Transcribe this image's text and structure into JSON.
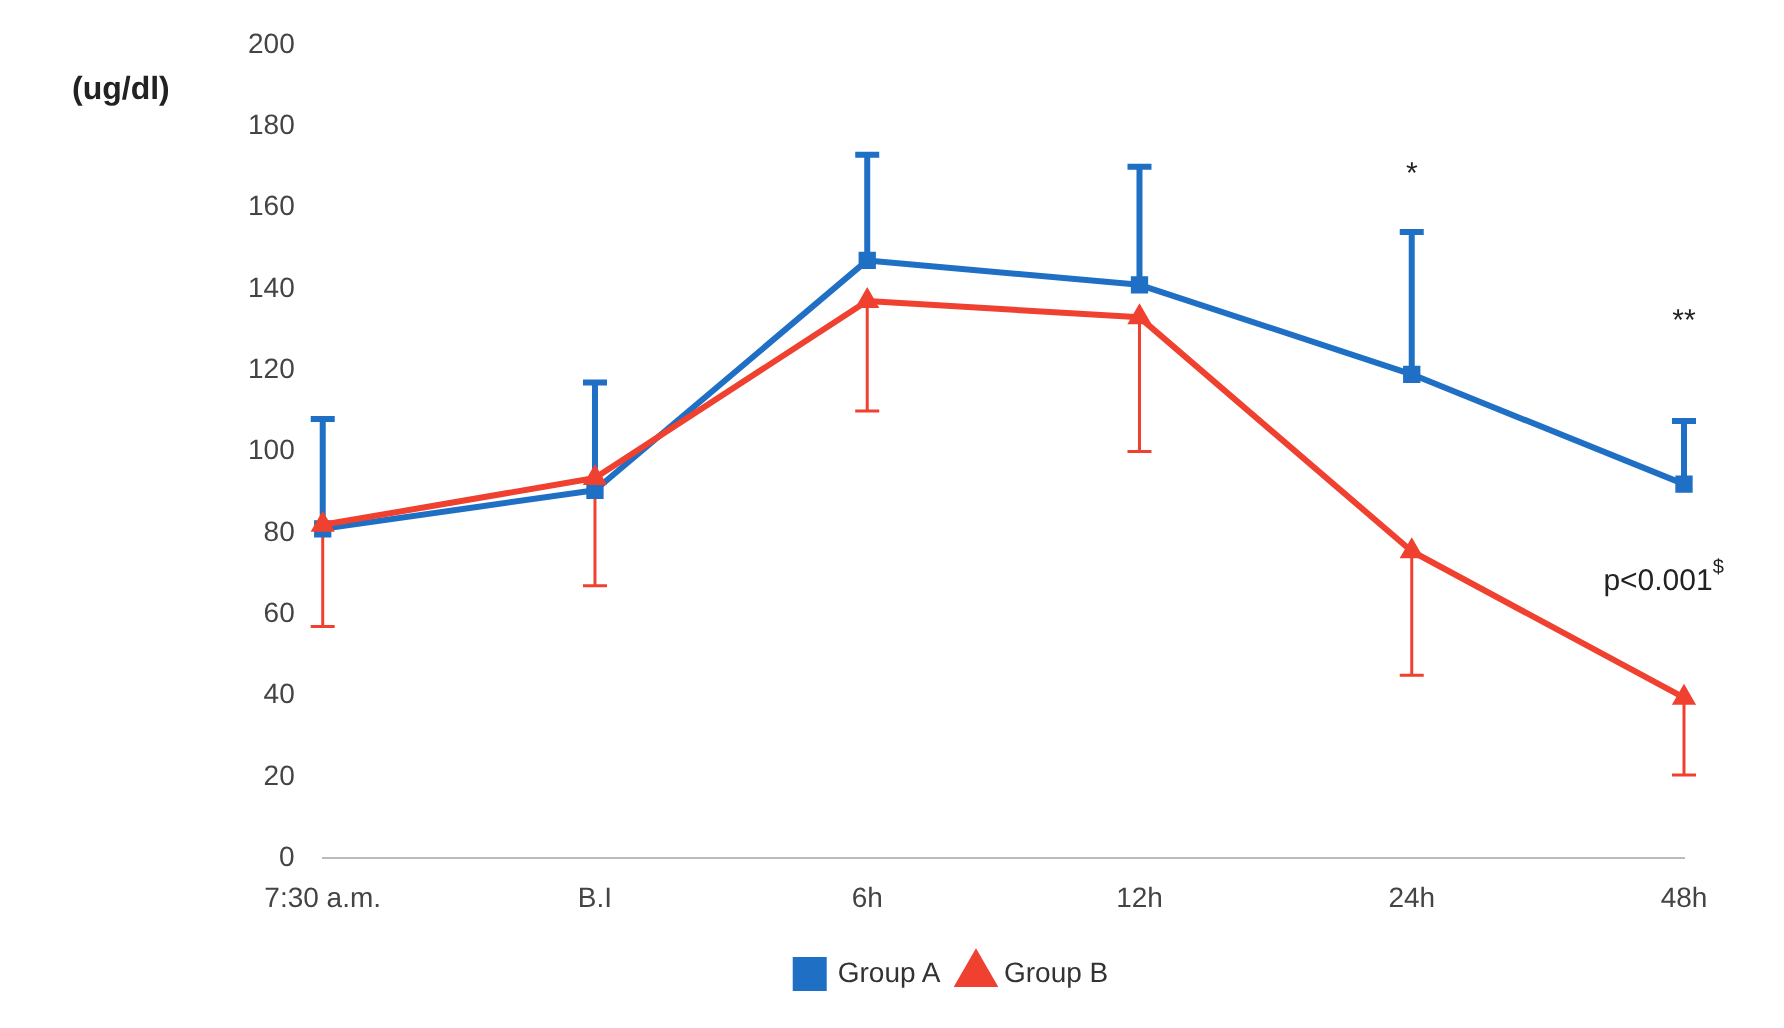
{
  "chart_data": {
    "type": "line",
    "ylabel": "(ug/dl)",
    "categories": [
      "7:30 a.m.",
      "B.I",
      "6h",
      "12h",
      "24h",
      "48h"
    ],
    "series": [
      {
        "name": "Group A",
        "color": "#1f6fc5",
        "marker": "square",
        "values": [
          81,
          90.5,
          147,
          141,
          119,
          92
        ],
        "errors": [
          [
            81,
            108
          ],
          [
            90.5,
            117
          ],
          [
            147,
            173
          ],
          [
            141,
            170
          ],
          [
            119,
            154
          ],
          [
            92,
            107.5
          ]
        ]
      },
      {
        "name": "Group B",
        "color": "#f0402f",
        "marker": "triangle",
        "values": [
          82,
          93.5,
          137,
          133,
          75.5,
          39.5
        ],
        "errors": [
          [
            57,
            82
          ],
          [
            67,
            93.5
          ],
          [
            110,
            137
          ],
          [
            100,
            133
          ],
          [
            45,
            75.5
          ],
          [
            20.5,
            39.5
          ]
        ]
      }
    ],
    "ylim": [
      0,
      200
    ],
    "yticks": [
      0,
      20,
      40,
      60,
      80,
      100,
      120,
      140,
      160,
      180,
      200
    ],
    "grid": false,
    "legend": "bottom",
    "line_style": "solid",
    "annotations": [
      "*",
      "**",
      "p<0.001$^{$}$"
    ]
  }
}
